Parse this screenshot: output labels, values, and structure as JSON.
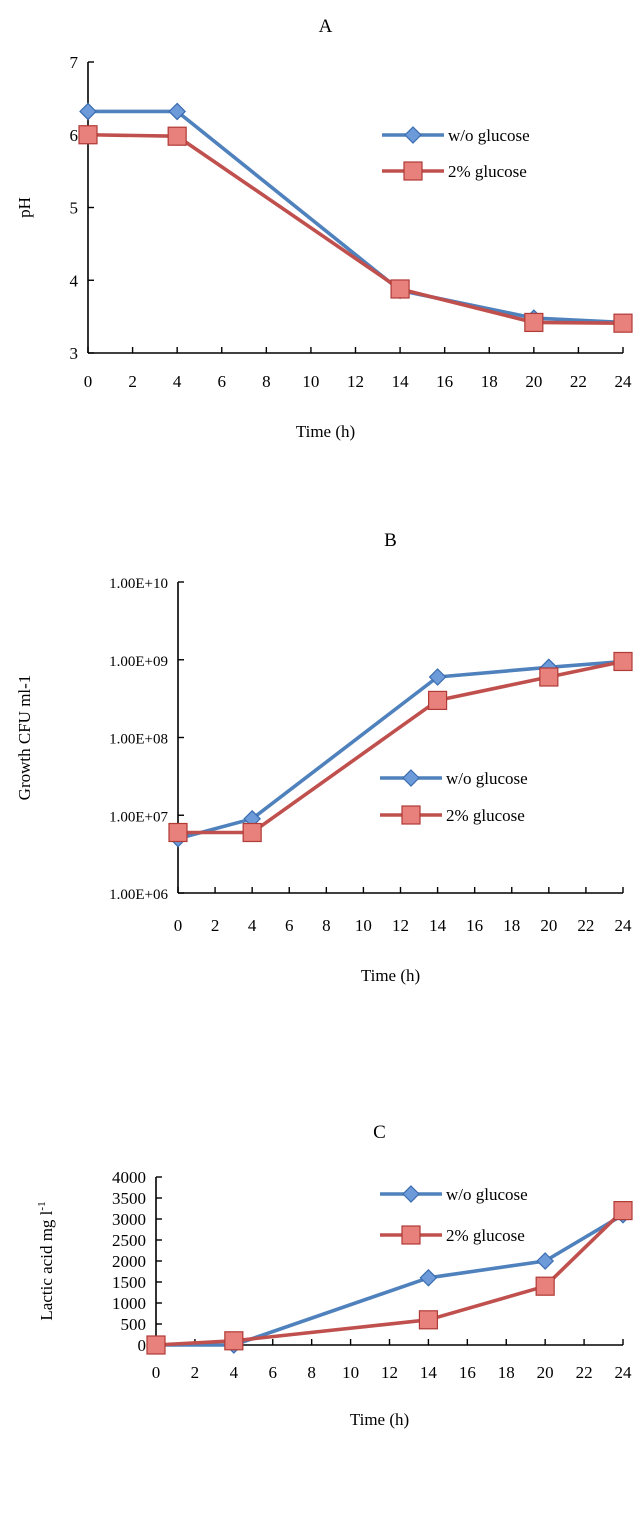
{
  "chart_data": [
    {
      "type": "line",
      "panel_label": "A",
      "xlabel": "Time (h)",
      "ylabel": "pH",
      "xlim": [
        0,
        24
      ],
      "ylim": [
        3,
        7
      ],
      "x_ticks": [
        "0",
        "2",
        "4",
        "6",
        "8",
        "10",
        "12",
        "14",
        "16",
        "18",
        "20",
        "22",
        "24"
      ],
      "y_ticks": [
        "3",
        "4",
        "5",
        "6",
        "7"
      ],
      "x": [
        0,
        4,
        14,
        20,
        24
      ],
      "series": [
        {
          "name": "w/o glucose",
          "values": [
            6.32,
            6.32,
            3.86,
            3.48,
            3.42
          ],
          "color": "#4f81bd",
          "marker": "diamond"
        },
        {
          "name": "2% glucose",
          "values": [
            6.0,
            5.98,
            3.88,
            3.42,
            3.41
          ],
          "color": "#c0504d",
          "marker": "square"
        }
      ],
      "legend": "right-upper",
      "grid": false
    },
    {
      "type": "line",
      "panel_label": "B",
      "xlabel": "Time (h)",
      "ylabel": "Growth CFU ml-1",
      "xlim": [
        0,
        24
      ],
      "ylim": [
        1000000,
        10000000000
      ],
      "log_y": true,
      "x_ticks": [
        "0",
        "2",
        "4",
        "6",
        "8",
        "10",
        "12",
        "14",
        "16",
        "18",
        "20",
        "22",
        "24"
      ],
      "y_ticks": [
        "1.00E+06",
        "1.00E+07",
        "1.00E+08",
        "1.00E+09",
        "1.00E+10"
      ],
      "x": [
        0,
        4,
        14,
        20,
        24
      ],
      "series": [
        {
          "name": "w/o glucose",
          "values": [
            5000000,
            9000000,
            600000000,
            800000000,
            950000000
          ],
          "color": "#4f81bd",
          "marker": "diamond"
        },
        {
          "name": "2% glucose",
          "values": [
            6000000,
            6000000,
            300000000,
            600000000,
            950000000
          ],
          "color": "#c0504d",
          "marker": "square"
        }
      ],
      "legend": "right-middle",
      "grid": false
    },
    {
      "type": "line",
      "panel_label": "C",
      "xlabel": "Time (h)",
      "ylabel": "Lactic acid mg l",
      "ylabel_sup": "-1",
      "xlim": [
        0,
        24
      ],
      "ylim": [
        0,
        4000
      ],
      "x_ticks": [
        "0",
        "2",
        "4",
        "6",
        "8",
        "10",
        "12",
        "14",
        "16",
        "18",
        "20",
        "22",
        "24"
      ],
      "y_ticks": [
        "0",
        "500",
        "1000",
        "1500",
        "2000",
        "2500",
        "3000",
        "3500",
        "4000"
      ],
      "x": [
        0,
        4,
        14,
        20,
        24
      ],
      "series": [
        {
          "name": "w/o glucose",
          "values": [
            0,
            0,
            1600,
            2000,
            3100
          ],
          "color": "#4f81bd",
          "marker": "diamond"
        },
        {
          "name": "2% glucose",
          "values": [
            0,
            100,
            600,
            1400,
            3200
          ],
          "color": "#c0504d",
          "marker": "square"
        }
      ],
      "legend": "right-upper",
      "grid": false
    }
  ]
}
